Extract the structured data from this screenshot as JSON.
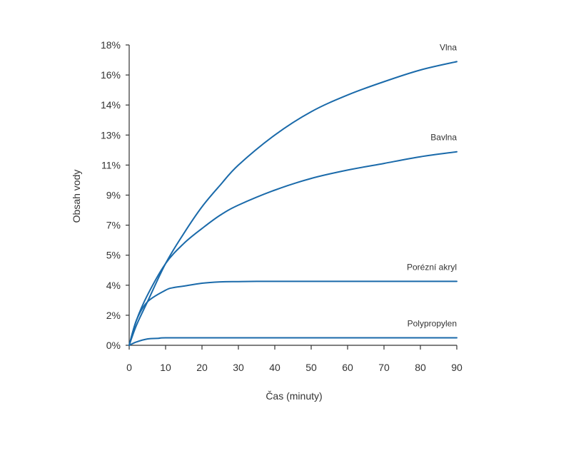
{
  "chart_data": {
    "type": "line",
    "title": "",
    "xlabel": "Čas (minuty)",
    "ylabel": "Obsah vody",
    "xlim": [
      0,
      90
    ],
    "ylim": [
      0,
      18
    ],
    "x_ticks": [
      0,
      10,
      20,
      30,
      40,
      50,
      60,
      70,
      80,
      90
    ],
    "y_tick_labels": [
      "0%",
      "2%",
      "4%",
      "5%",
      "7%",
      "9%",
      "11%",
      "13%",
      "14%",
      "16%",
      "18%"
    ],
    "grid": false,
    "legend": "inline labels at line ends",
    "line_color": "#1a6aaa",
    "series": [
      {
        "name": "Vlna",
        "x": [
          0,
          2,
          5,
          10,
          15,
          20,
          25,
          30,
          40,
          50,
          60,
          70,
          80,
          90
        ],
        "values": [
          0,
          1.2,
          2.6,
          4.9,
          6.7,
          8.3,
          9.6,
          10.8,
          12.6,
          14.0,
          15.0,
          15.8,
          16.5,
          17.0
        ]
      },
      {
        "name": "Bavlna",
        "x": [
          0,
          2,
          5,
          10,
          15,
          20,
          25,
          30,
          40,
          50,
          60,
          70,
          80,
          90
        ],
        "values": [
          0,
          1.5,
          3.0,
          4.9,
          6.1,
          7.0,
          7.8,
          8.4,
          9.3,
          10.0,
          10.5,
          10.9,
          11.3,
          11.6
        ]
      },
      {
        "name": "Porézní akryl",
        "x": [
          0,
          2,
          5,
          10,
          12,
          15,
          20,
          25,
          30,
          35,
          40,
          60,
          90
        ],
        "values": [
          0,
          1.5,
          2.6,
          3.3,
          3.45,
          3.55,
          3.72,
          3.8,
          3.82,
          3.83,
          3.83,
          3.83,
          3.83
        ]
      },
      {
        "name": "Polypropylen",
        "x": [
          0,
          2,
          5,
          8,
          10,
          20,
          30,
          60,
          90
        ],
        "values": [
          0,
          0.2,
          0.38,
          0.42,
          0.45,
          0.45,
          0.45,
          0.45,
          0.45
        ]
      }
    ]
  }
}
